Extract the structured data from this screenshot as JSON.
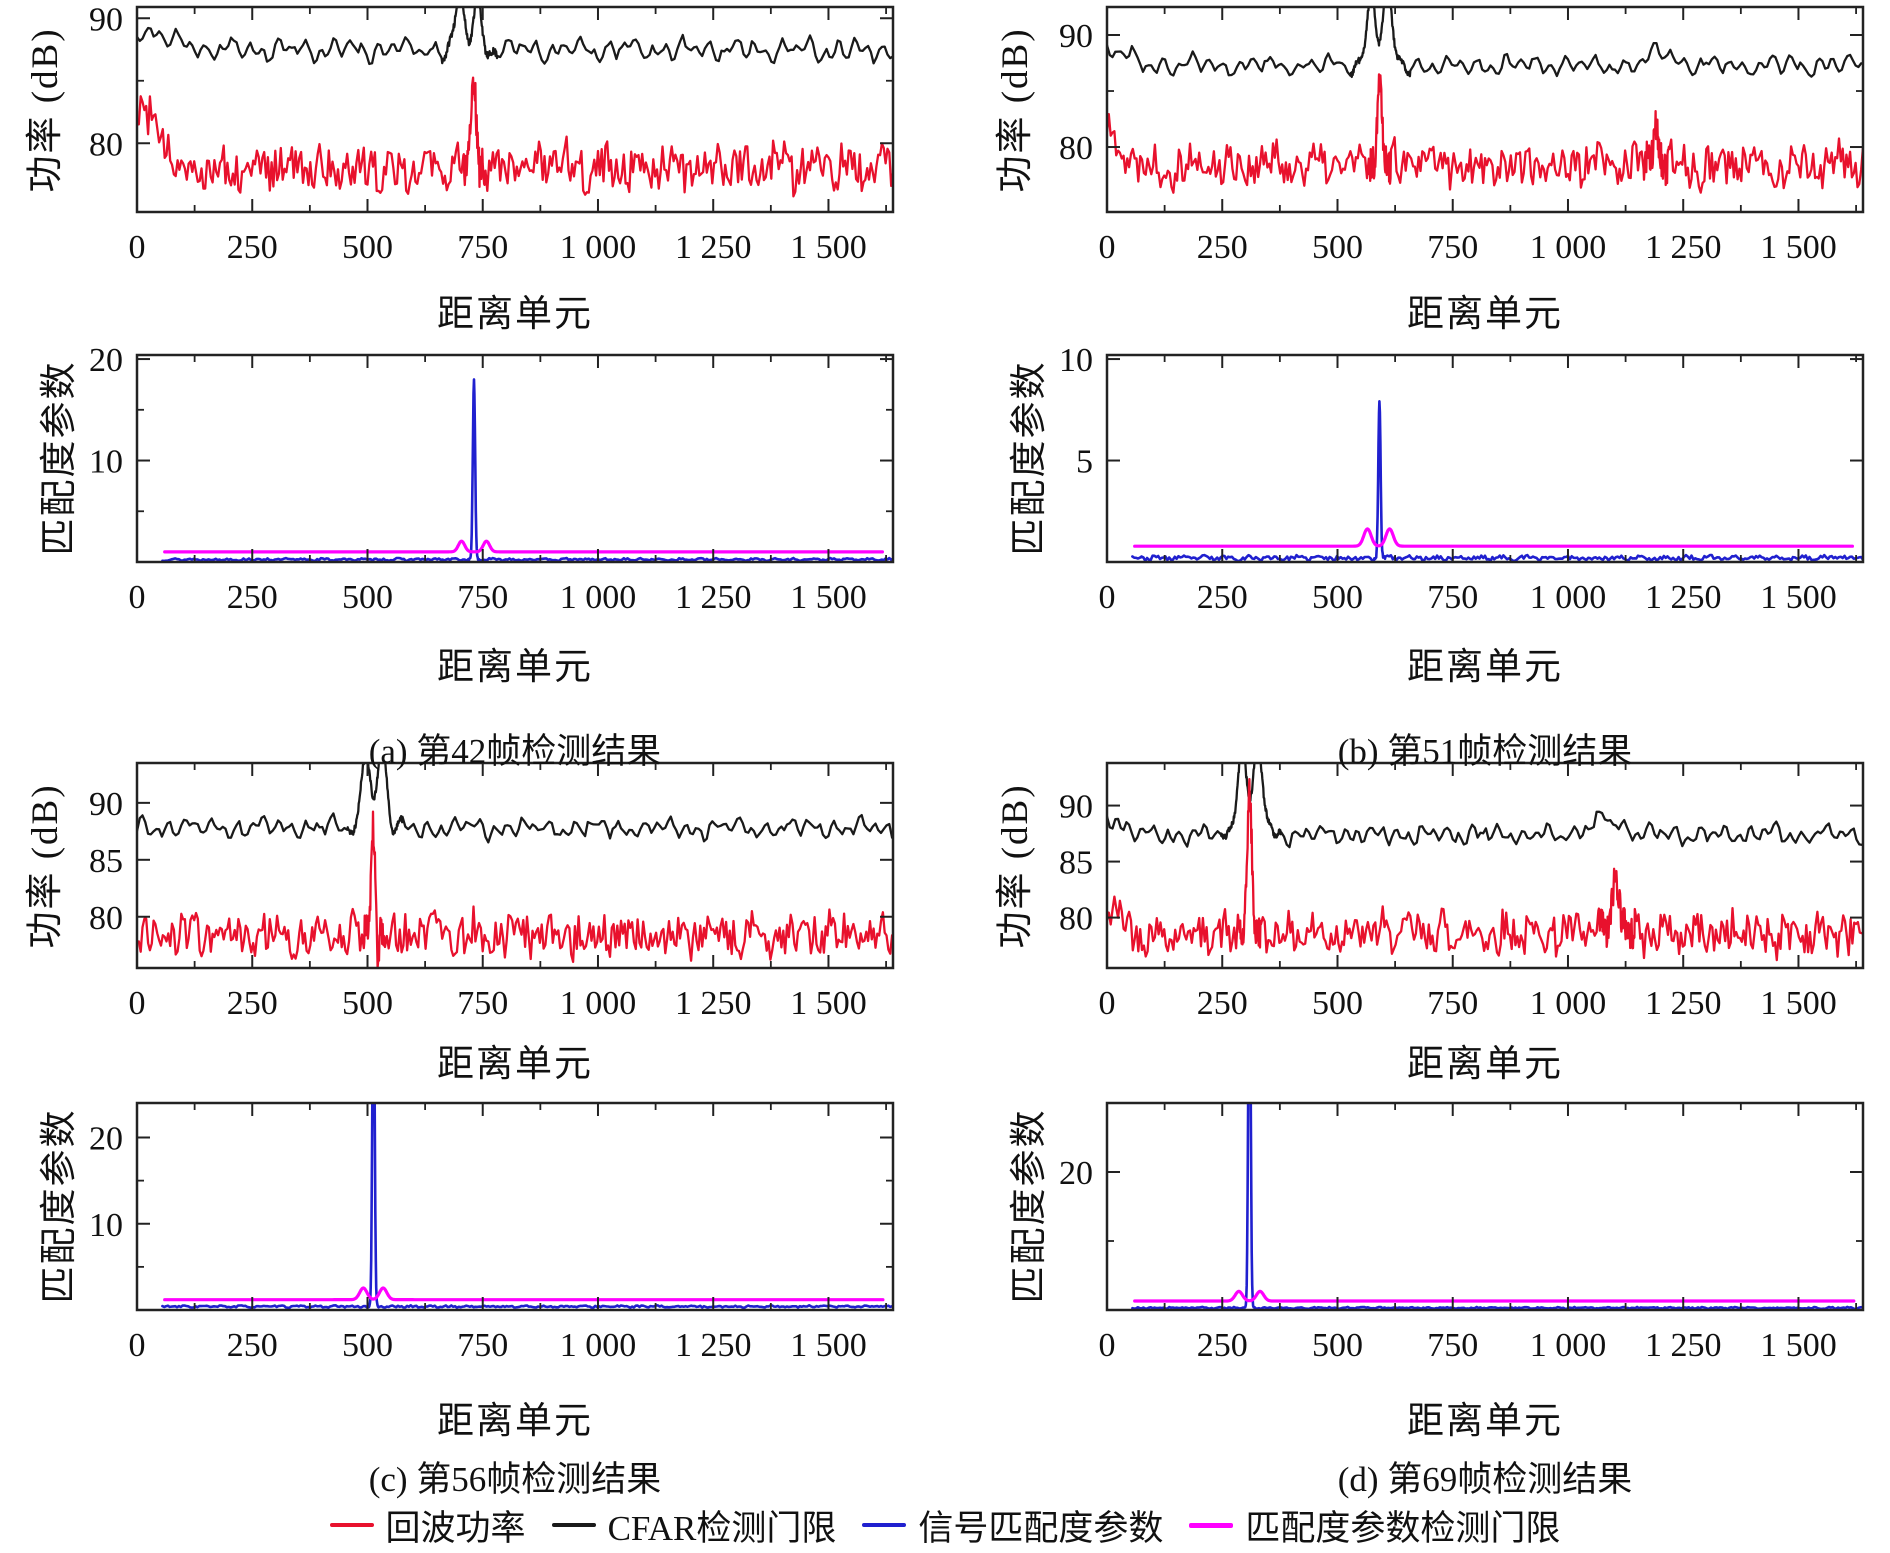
{
  "figure": {
    "panels": [
      {
        "id": "a",
        "caption": "(a) 第42帧检测结果",
        "target_range_cell": 731
      },
      {
        "id": "b",
        "caption": "(b) 第51帧检测结果",
        "target_range_cell": 591
      },
      {
        "id": "c",
        "caption": "(c) 第56帧检测结果",
        "target_range_cell": 513
      },
      {
        "id": "d",
        "caption": "(d) 第69帧检测结果",
        "target_range_cell": 309
      }
    ],
    "legend": {
      "items": [
        {
          "label": "回波功率",
          "color": "#e8112d"
        },
        {
          "label": "CFAR检测门限",
          "color": "#1a1a1a"
        },
        {
          "label": "信号匹配度参数",
          "color": "#2020cf"
        },
        {
          "label": "匹配度参数检测门限",
          "color": "#ff00ff"
        }
      ]
    }
  },
  "chart_data": [
    {
      "id": "a-power",
      "type": "line",
      "kind": "power",
      "panel": "a",
      "xlabel": "距离单元",
      "ylabel": "功率 (dB)",
      "xlim": [
        0,
        1640
      ],
      "xticks": [
        0,
        250,
        500,
        750,
        1000,
        1250,
        1500
      ],
      "xtick_labels": [
        "0",
        "250",
        "500",
        "750",
        "1 000",
        "1 250",
        "1 500"
      ],
      "xticks_minor": [
        125,
        375,
        625,
        875,
        1125,
        1375,
        1625
      ],
      "ylim": [
        74.5,
        90.9
      ],
      "yticks": [
        80,
        90
      ],
      "ytick_labels": [
        "80",
        "90"
      ],
      "yticks_minor": [
        85
      ],
      "series": [
        {
          "name": "CFAR检测门限",
          "color": "#1a1a1a",
          "profile": "cfar",
          "seed": 11,
          "base": 87.5,
          "peaks": [
            {
              "x": 8,
              "h": 1.6,
              "w": 55
            },
            {
              "x": 700,
              "h": 3.8,
              "w": 9
            },
            {
              "x": 737,
              "h": 3.9,
              "w": 9
            }
          ]
        },
        {
          "name": "回波功率",
          "color": "#e8112d",
          "profile": "echo",
          "seed": 12,
          "base": 78.1,
          "peaks": [
            {
              "x": 5,
              "h": 4.5,
              "w": 40
            },
            {
              "x": 731,
              "h": 7.4,
              "w": 5
            }
          ]
        }
      ]
    },
    {
      "id": "a-match",
      "type": "line",
      "kind": "match",
      "panel": "a",
      "xlabel": "距离单元",
      "ylabel": "匹配度参数",
      "xlim": [
        0,
        1640
      ],
      "xticks": [
        0,
        250,
        500,
        750,
        1000,
        1250,
        1500
      ],
      "xtick_labels": [
        "0",
        "250",
        "500",
        "750",
        "1 000",
        "1 250",
        "1 500"
      ],
      "xticks_minor": [
        125,
        375,
        625,
        875,
        1125,
        1375,
        1625
      ],
      "ylim": [
        0,
        20.4
      ],
      "yticks": [
        10,
        20
      ],
      "ytick_labels": [
        "10",
        "20"
      ],
      "yticks_minor": [
        5,
        15
      ],
      "series": [
        {
          "name": "信号匹配度参数",
          "color": "#2020cf",
          "profile": "match",
          "seed": 13,
          "base": 0.25,
          "peaks": [
            {
              "x": 731,
              "h": 17.7,
              "w": 2.5
            }
          ]
        },
        {
          "name": "匹配度参数检测门限",
          "color": "#ff00ff",
          "profile": "threshold",
          "seed": 14,
          "base": 1.0,
          "peaks": [
            {
              "x": 704,
              "h": 1.05,
              "w": 7
            },
            {
              "x": 758,
              "h": 1.05,
              "w": 7
            }
          ]
        }
      ]
    },
    {
      "id": "b-power",
      "type": "line",
      "kind": "power",
      "panel": "b",
      "xlabel": "距离单元",
      "ylabel": "功率 (dB)",
      "xlim": [
        0,
        1640
      ],
      "xticks": [
        0,
        250,
        500,
        750,
        1000,
        1250,
        1500
      ],
      "xtick_labels": [
        "0",
        "250",
        "500",
        "750",
        "1 000",
        "1 250",
        "1 500"
      ],
      "xticks_minor": [
        125,
        375,
        625,
        875,
        1125,
        1375,
        1625
      ],
      "ylim": [
        74.2,
        92.5
      ],
      "yticks": [
        80,
        90
      ],
      "ytick_labels": [
        "80",
        "90"
      ],
      "yticks_minor": [
        85
      ],
      "series": [
        {
          "name": "CFAR检测门限",
          "color": "#1a1a1a",
          "profile": "cfar",
          "seed": 21,
          "base": 87.3,
          "peaks": [
            {
              "x": 5,
              "h": 1.4,
              "w": 35
            },
            {
              "x": 573,
              "h": 6.0,
              "w": 10
            },
            {
              "x": 608,
              "h": 6.2,
              "w": 10
            },
            {
              "x": 1205,
              "h": 1.3,
              "w": 25
            }
          ]
        },
        {
          "name": "回波功率",
          "color": "#e8112d",
          "profile": "echo",
          "seed": 22,
          "base": 78.4,
          "peaks": [
            {
              "x": 5,
              "h": 2.5,
              "w": 30
            },
            {
              "x": 591,
              "h": 8.6,
              "w": 5
            },
            {
              "x": 1190,
              "h": 3.9,
              "w": 6
            }
          ]
        }
      ]
    },
    {
      "id": "b-match",
      "type": "line",
      "kind": "match",
      "panel": "b",
      "xlabel": "距离单元",
      "ylabel": "匹配度参数",
      "xlim": [
        0,
        1640
      ],
      "xticks": [
        0,
        250,
        500,
        750,
        1000,
        1250,
        1500
      ],
      "xtick_labels": [
        "0",
        "250",
        "500",
        "750",
        "1 000",
        "1 250",
        "1 500"
      ],
      "xticks_minor": [
        125,
        375,
        625,
        875,
        1125,
        1375,
        1625
      ],
      "ylim": [
        0,
        10.2
      ],
      "yticks": [
        5,
        10
      ],
      "ytick_labels": [
        "5",
        "10"
      ],
      "yticks_minor": [],
      "series": [
        {
          "name": "信号匹配度参数",
          "color": "#2020cf",
          "profile": "match",
          "seed": 23,
          "base": 0.2,
          "peaks": [
            {
              "x": 591,
              "h": 7.8,
              "w": 2.5
            }
          ]
        },
        {
          "name": "匹配度参数检测门限",
          "color": "#ff00ff",
          "profile": "threshold",
          "seed": 24,
          "base": 0.78,
          "peaks": [
            {
              "x": 565,
              "h": 0.85,
              "w": 8
            },
            {
              "x": 613,
              "h": 0.85,
              "w": 8
            }
          ]
        }
      ]
    },
    {
      "id": "c-power",
      "type": "line",
      "kind": "power",
      "panel": "c",
      "xlabel": "距离单元",
      "ylabel": "功率 (dB)",
      "xlim": [
        0,
        1640
      ],
      "xticks": [
        0,
        250,
        500,
        750,
        1000,
        1250,
        1500
      ],
      "xtick_labels": [
        "0",
        "250",
        "500",
        "750",
        "1 000",
        "1 250",
        "1 500"
      ],
      "xticks_minor": [
        125,
        375,
        625,
        875,
        1125,
        1375,
        1625
      ],
      "ylim": [
        75.5,
        93.5
      ],
      "yticks": [
        80,
        85,
        90
      ],
      "ytick_labels": [
        "80",
        "85",
        "90"
      ],
      "yticks_minor": [],
      "series": [
        {
          "name": "CFAR检测门限",
          "color": "#1a1a1a",
          "profile": "cfar",
          "seed": 31,
          "base": 87.8,
          "peaks": [
            {
              "x": 497,
              "h": 7.5,
              "w": 9
            },
            {
              "x": 531,
              "h": 7.5,
              "w": 9
            }
          ]
        },
        {
          "name": "回波功率",
          "color": "#e8112d",
          "profile": "echo",
          "seed": 32,
          "base": 78.4,
          "peaks": [
            {
              "x": 513,
              "h": 10.4,
              "w": 5
            },
            {
              "x": 522,
              "h": -3.5,
              "w": 3
            }
          ]
        }
      ]
    },
    {
      "id": "c-match",
      "type": "line",
      "kind": "match",
      "panel": "c",
      "xlabel": "距离单元",
      "ylabel": "匹配度参数",
      "xlim": [
        0,
        1640
      ],
      "xticks": [
        0,
        250,
        500,
        750,
        1000,
        1250,
        1500
      ],
      "xtick_labels": [
        "0",
        "250",
        "500",
        "750",
        "1 000",
        "1 250",
        "1 500"
      ],
      "xticks_minor": [
        125,
        375,
        625,
        875,
        1125,
        1375,
        1625
      ],
      "ylim": [
        0,
        24
      ],
      "yticks": [
        10,
        20
      ],
      "ytick_labels": [
        "10",
        "20"
      ],
      "yticks_minor": [
        5,
        15
      ],
      "series": [
        {
          "name": "信号匹配度参数",
          "color": "#2020cf",
          "profile": "match",
          "seed": 33,
          "base": 0.4,
          "peaks": [
            {
              "x": 513,
              "h": 40,
              "w": 2.5
            }
          ]
        },
        {
          "name": "匹配度参数检测门限",
          "color": "#ff00ff",
          "profile": "threshold",
          "seed": 34,
          "base": 1.2,
          "peaks": [
            {
              "x": 491,
              "h": 1.35,
              "w": 8
            },
            {
              "x": 534,
              "h": 1.35,
              "w": 8
            }
          ]
        }
      ]
    },
    {
      "id": "d-power",
      "type": "line",
      "kind": "power",
      "panel": "d",
      "xlabel": "距离单元",
      "ylabel": "功率 (dB)",
      "xlim": [
        0,
        1640
      ],
      "xticks": [
        0,
        250,
        500,
        750,
        1000,
        1250,
        1500
      ],
      "xtick_labels": [
        "0",
        "250",
        "500",
        "750",
        "1 000",
        "1 250",
        "1 500"
      ],
      "xticks_minor": [
        125,
        375,
        625,
        875,
        1125,
        1375,
        1625
      ],
      "ylim": [
        75.5,
        93.8
      ],
      "yticks": [
        80,
        85,
        90
      ],
      "ytick_labels": [
        "80",
        "85",
        "90"
      ],
      "yticks_minor": [],
      "series": [
        {
          "name": "CFAR检测门限",
          "color": "#1a1a1a",
          "profile": "cfar",
          "seed": 41,
          "base": 87.4,
          "peaks": [
            {
              "x": 5,
              "h": 1.5,
              "w": 30
            },
            {
              "x": 292,
              "h": 8.0,
              "w": 10
            },
            {
              "x": 328,
              "h": 8.0,
              "w": 10
            },
            {
              "x": 1080,
              "h": 1.2,
              "w": 40
            }
          ]
        },
        {
          "name": "回波功率",
          "color": "#e8112d",
          "profile": "echo",
          "seed": 42,
          "base": 78.6,
          "peaks": [
            {
              "x": 3,
              "h": 2.5,
              "w": 25
            },
            {
              "x": 309,
              "h": 11.6,
              "w": 5
            },
            {
              "x": 1105,
              "h": 5.4,
              "w": 8
            }
          ]
        }
      ]
    },
    {
      "id": "d-match",
      "type": "line",
      "kind": "match",
      "panel": "d",
      "xlabel": "距离单元",
      "ylabel": "匹配度参数",
      "xlim": [
        0,
        1640
      ],
      "xticks": [
        0,
        250,
        500,
        750,
        1000,
        1250,
        1500
      ],
      "xtick_labels": [
        "0",
        "250",
        "500",
        "750",
        "1 000",
        "1 250",
        "1 500"
      ],
      "xticks_minor": [
        125,
        375,
        625,
        875,
        1125,
        1375,
        1625
      ],
      "ylim": [
        0,
        30
      ],
      "yticks": [
        20
      ],
      "ytick_labels": [
        "20"
      ],
      "yticks_minor": [
        10
      ],
      "series": [
        {
          "name": "信号匹配度参数",
          "color": "#2020cf",
          "profile": "match",
          "seed": 43,
          "base": 0.3,
          "peaks": [
            {
              "x": 309,
              "h": 60,
              "w": 2.5
            }
          ]
        },
        {
          "name": "匹配度参数检测门限",
          "color": "#ff00ff",
          "profile": "threshold",
          "seed": 44,
          "base": 1.3,
          "peaks": [
            {
              "x": 286,
              "h": 1.4,
              "w": 8
            },
            {
              "x": 332,
              "h": 1.4,
              "w": 8
            }
          ]
        }
      ]
    }
  ]
}
